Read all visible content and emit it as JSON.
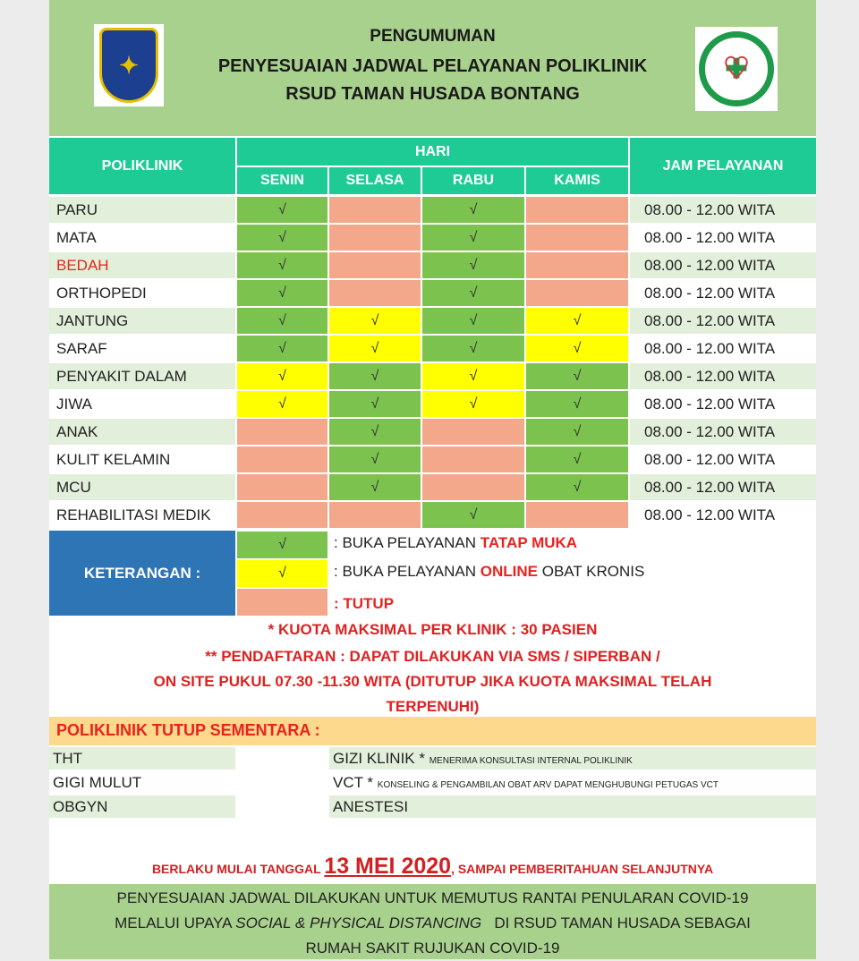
{
  "header": {
    "line1": "PENGUMUMAN",
    "line2": "PENYESUAIAN JADWAL PELAYANAN POLIKLINIK",
    "line3": "RSUD TAMAN HUSADA BONTANG"
  },
  "table": {
    "col_poli": "POLIKLINIK",
    "col_hari": "HARI",
    "days": [
      "SENIN",
      "SELASA",
      "RABU",
      "KAMIS"
    ],
    "col_jam": "JAM PELAYANAN",
    "check": "√",
    "rows": [
      {
        "name": "PARU",
        "days": [
          "g",
          "r",
          "g",
          "r"
        ],
        "time": "08.00 - 12.00 WITA"
      },
      {
        "name": "MATA",
        "days": [
          "g",
          "r",
          "g",
          "r"
        ],
        "time": "08.00 - 12.00 WITA"
      },
      {
        "name": "BEDAH",
        "days": [
          "g",
          "r",
          "g",
          "r"
        ],
        "time": "08.00 - 12.00 WITA",
        "name_color": "#e8231f"
      },
      {
        "name": "ORTHOPEDI",
        "days": [
          "g",
          "r",
          "g",
          "r"
        ],
        "time": "08.00 - 12.00 WITA"
      },
      {
        "name": "JANTUNG",
        "days": [
          "g",
          "y",
          "g",
          "y"
        ],
        "time": "08.00 - 12.00 WITA"
      },
      {
        "name": "SARAF",
        "days": [
          "g",
          "y",
          "g",
          "y"
        ],
        "time": "08.00 - 12.00 WITA"
      },
      {
        "name": "PENYAKIT DALAM",
        "days": [
          "y",
          "g",
          "y",
          "g"
        ],
        "time": "08.00 - 12.00 WITA"
      },
      {
        "name": "JIWA",
        "days": [
          "y",
          "g",
          "y",
          "g"
        ],
        "time": "08.00 - 12.00 WITA"
      },
      {
        "name": "ANAK",
        "days": [
          "r",
          "g",
          "r",
          "g"
        ],
        "time": "08.00 - 12.00 WITA"
      },
      {
        "name": "KULIT KELAMIN",
        "days": [
          "r",
          "g",
          "r",
          "g"
        ],
        "time": "08.00 - 12.00 WITA"
      },
      {
        "name": "MCU",
        "days": [
          "r",
          "g",
          "r",
          "g"
        ],
        "time": "08.00 - 12.00 WITA"
      },
      {
        "name": "REHABILITASI MEDIK",
        "days": [
          "r",
          "r",
          "g",
          "r"
        ],
        "time": "08.00 - 12.00 WITA"
      }
    ]
  },
  "colors": {
    "g": "#7cc24f",
    "y": "#ffff00",
    "r": "#f3a88c",
    "header_green": "#a9d18e",
    "teal": "#1ecb95",
    "legend_blue": "#2e75b6"
  },
  "legend": {
    "label": "KETERANGAN :",
    "green": {
      "pre": ": BUKA PELAYANAN ",
      "hl": "TATAP MUKA",
      "post": ""
    },
    "yellow": {
      "pre": ": BUKA PELAYANAN ",
      "hl": "ONLINE",
      "post": " OBAT KRONIS"
    },
    "red": {
      "pre": ": ",
      "hl": "TUTUP",
      "post": ""
    }
  },
  "notes": {
    "quota": "* KUOTA MAKSIMAL PER KLINIK : 30 PASIEN",
    "reg1": "** PENDAFTARAN : DAPAT DILAKUKAN VIA SMS / SIPERBAN /",
    "reg2": "ON SITE PUKUL 07.30 -11.30 WITA (DITUTUP JIKA KUOTA MAKSIMAL TELAH",
    "reg3": "TERPENUHI)"
  },
  "closed": {
    "title": "POLIKLINIK TUTUP SEMENTARA  :",
    "left": [
      "THT",
      "GIGI MULUT",
      "OBGYN"
    ],
    "right": [
      {
        "name": "GIZI KLINIK *",
        "note": "MENERIMA KONSULTASI INTERNAL POLIKLINIK"
      },
      {
        "name": "VCT *",
        "note": "KONSELING & PENGAMBILAN OBAT ARV DAPAT MENGHUBUNGI PETUGAS VCT"
      },
      {
        "name": "ANESTESI",
        "note": ""
      }
    ]
  },
  "validity": {
    "pre": "BERLAKU MULAI TANGGAL ",
    "date": "13 MEI 2020",
    "post": ", SAMPAI PEMBERITAHUAN SELANJUTNYA"
  },
  "footer": {
    "l1": "PENYESUAIAN JADWAL DILAKUKAN UNTUK MEMUTUS RANTAI PENULARAN COVID-19",
    "l2a": "MELALUI UPAYA ",
    "l2b": "SOCIAL & PHYSICAL DISTANCING",
    "l2c": "   DI RSUD TAMAN HUSADA SEBAGAI",
    "l3": "RUMAH SAKIT RUJUKAN COVID-19"
  }
}
